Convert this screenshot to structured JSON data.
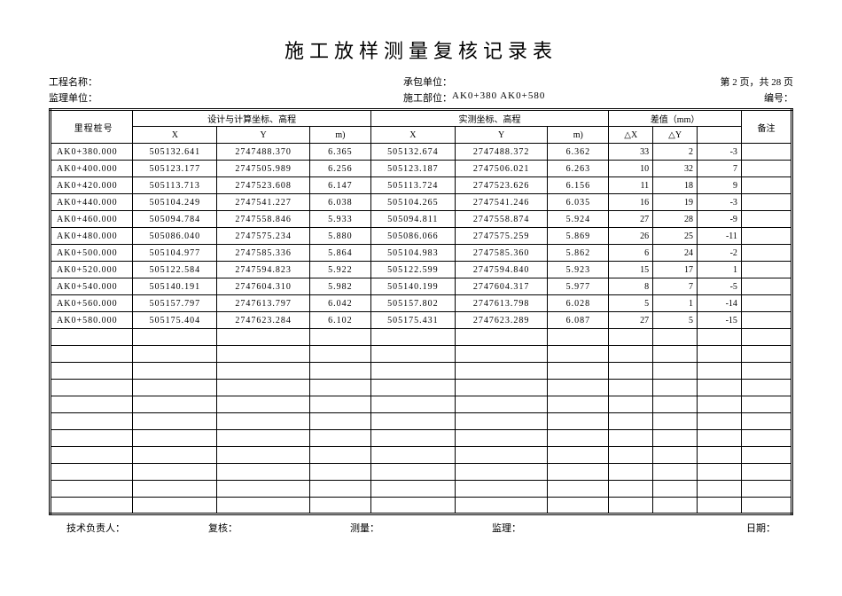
{
  "title": "施工放样测量复核记录表",
  "meta": {
    "projectNameLabel": "工程名称：",
    "projectNameValue": "",
    "contractorLabel": "承包单位：",
    "contractorValue": "",
    "pageInfo": "第 2 页，共 28 页",
    "supervisorLabel": "监理单位：",
    "supervisorValue": "",
    "sectionLabel": "施工部位：",
    "sectionValue": "AK0+380 AK0+580",
    "codeLabel": "编号："
  },
  "headers": {
    "station": "里程桩号",
    "design": "设计与计算坐标、高程",
    "measured": "实测坐标、高程",
    "diff": "差值（mm）",
    "remark": "备注",
    "x": "X",
    "y": "Y",
    "h": "m)",
    "dx": "△X",
    "dy": "△Y",
    "dh": ""
  },
  "rows": [
    {
      "st": "AK0+380.000",
      "dx": "505132.641",
      "dy": "2747488.370",
      "dh": "6.365",
      "mx": "505132.674",
      "my": "2747488.372",
      "mh": "6.362",
      "ex": "33",
      "ey": "2",
      "eh": "-3"
    },
    {
      "st": "AK0+400.000",
      "dx": "505123.177",
      "dy": "2747505.989",
      "dh": "6.256",
      "mx": "505123.187",
      "my": "2747506.021",
      "mh": "6.263",
      "ex": "10",
      "ey": "32",
      "eh": "7"
    },
    {
      "st": "AK0+420.000",
      "dx": "505113.713",
      "dy": "2747523.608",
      "dh": "6.147",
      "mx": "505113.724",
      "my": "2747523.626",
      "mh": "6.156",
      "ex": "11",
      "ey": "18",
      "eh": "9"
    },
    {
      "st": "AK0+440.000",
      "dx": "505104.249",
      "dy": "2747541.227",
      "dh": "6.038",
      "mx": "505104.265",
      "my": "2747541.246",
      "mh": "6.035",
      "ex": "16",
      "ey": "19",
      "eh": "-3"
    },
    {
      "st": "AK0+460.000",
      "dx": "505094.784",
      "dy": "2747558.846",
      "dh": "5.933",
      "mx": "505094.811",
      "my": "2747558.874",
      "mh": "5.924",
      "ex": "27",
      "ey": "28",
      "eh": "-9"
    },
    {
      "st": "AK0+480.000",
      "dx": "505086.040",
      "dy": "2747575.234",
      "dh": "5.880",
      "mx": "505086.066",
      "my": "2747575.259",
      "mh": "5.869",
      "ex": "26",
      "ey": "25",
      "eh": "-11"
    },
    {
      "st": "AK0+500.000",
      "dx": "505104.977",
      "dy": "2747585.336",
      "dh": "5.864",
      "mx": "505104.983",
      "my": "2747585.360",
      "mh": "5.862",
      "ex": "6",
      "ey": "24",
      "eh": "-2"
    },
    {
      "st": "AK0+520.000",
      "dx": "505122.584",
      "dy": "2747594.823",
      "dh": "5.922",
      "mx": "505122.599",
      "my": "2747594.840",
      "mh": "5.923",
      "ex": "15",
      "ey": "17",
      "eh": "1"
    },
    {
      "st": "AK0+540.000",
      "dx": "505140.191",
      "dy": "2747604.310",
      "dh": "5.982",
      "mx": "505140.199",
      "my": "2747604.317",
      "mh": "5.977",
      "ex": "8",
      "ey": "7",
      "eh": "-5"
    },
    {
      "st": "AK0+560.000",
      "dx": "505157.797",
      "dy": "2747613.797",
      "dh": "6.042",
      "mx": "505157.802",
      "my": "2747613.798",
      "mh": "6.028",
      "ex": "5",
      "ey": "1",
      "eh": "-14"
    },
    {
      "st": "AK0+580.000",
      "dx": "505175.404",
      "dy": "2747623.284",
      "dh": "6.102",
      "mx": "505175.431",
      "my": "2747623.289",
      "mh": "6.087",
      "ex": "27",
      "ey": "5",
      "eh": "-15"
    }
  ],
  "emptyRows": 11,
  "footer": {
    "techLead": "技术负责人：",
    "reviewer": "复核：",
    "surveyor": "测量：",
    "supervisor": "监理：",
    "date": "日期："
  }
}
